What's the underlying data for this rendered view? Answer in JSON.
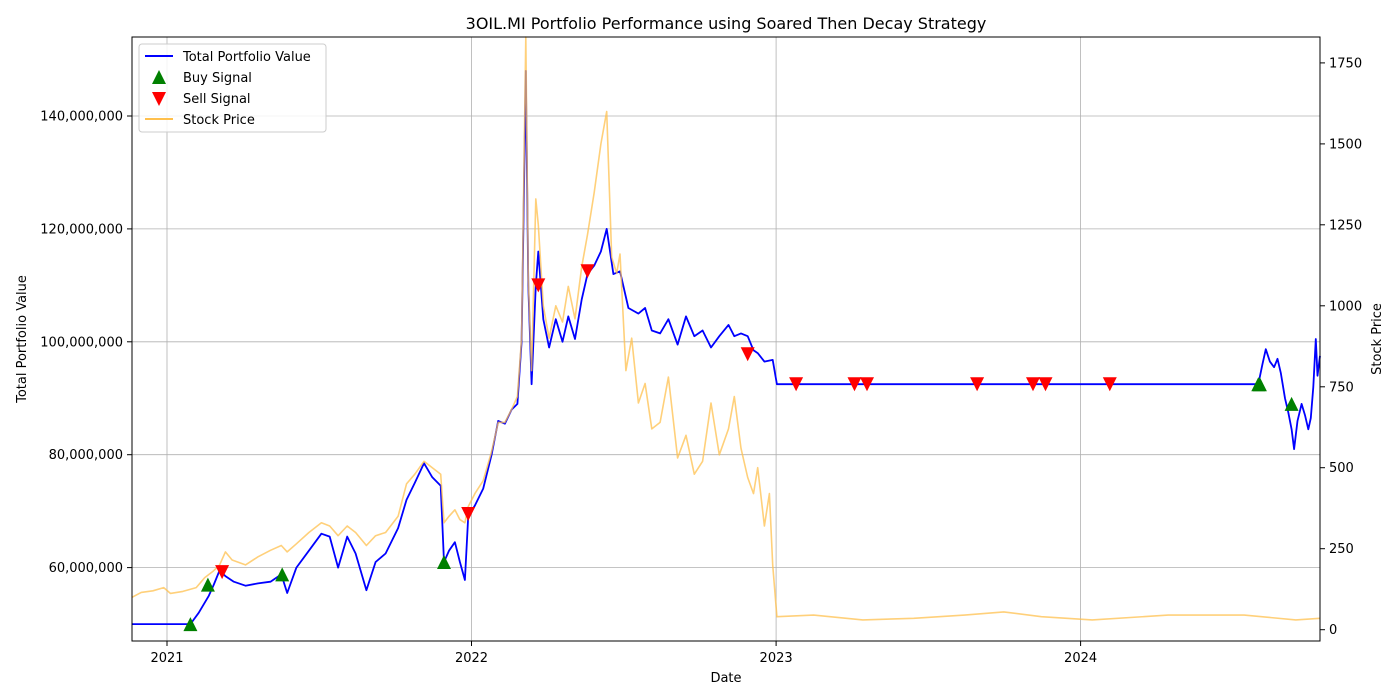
{
  "chart_data": {
    "type": "line",
    "title": "3OIL.MI Portfolio Performance using Soared Then Decay Strategy",
    "xlabel": "Date",
    "ylabel_left": "Total Portfolio Value",
    "ylabel_right": "Stock Price",
    "x_range": [
      "2020-11-20",
      "2024-10-14"
    ],
    "x_ticks": [
      {
        "date": "2021-01-01",
        "label": "2021"
      },
      {
        "date": "2022-01-01",
        "label": "2022"
      },
      {
        "date": "2023-01-01",
        "label": "2023"
      },
      {
        "date": "2024-01-01",
        "label": "2024"
      }
    ],
    "ylim_left": [
      47000000,
      154000000
    ],
    "yticks_left": [
      60000000,
      80000000,
      100000000,
      120000000,
      140000000
    ],
    "yticks_left_labels": [
      "60,000,000",
      "80,000,000",
      "100,000,000",
      "120,000,000",
      "140,000,000"
    ],
    "ylim_right": [
      -35,
      1830
    ],
    "yticks_right": [
      0,
      250,
      500,
      750,
      1000,
      1250,
      1500,
      1750
    ],
    "yticks_right_labels": [
      "0",
      "250",
      "500",
      "750",
      "1000",
      "1250",
      "1500",
      "1750"
    ],
    "grid": true,
    "legend_position": "top-left",
    "legend": [
      {
        "label": "Total Portfolio Value",
        "kind": "line",
        "color": "#0000ff"
      },
      {
        "label": "Buy Signal",
        "kind": "marker-up",
        "color": "#008000"
      },
      {
        "label": "Sell Signal",
        "kind": "marker-down",
        "color": "#ff0000"
      },
      {
        "label": "Stock Price",
        "kind": "line",
        "color": "#ffc04d"
      }
    ],
    "series": [
      {
        "name": "Total Portfolio Value",
        "axis": "left",
        "color": "#0000ff",
        "points": [
          [
            "2020-11-20",
            50000000
          ],
          [
            "2021-01-29",
            50000000
          ],
          [
            "2021-02-08",
            52000000
          ],
          [
            "2021-02-20",
            55000000
          ],
          [
            "2021-02-26",
            57000000
          ],
          [
            "2021-03-05",
            59500000
          ],
          [
            "2021-03-12",
            58500000
          ],
          [
            "2021-03-22",
            57500000
          ],
          [
            "2021-04-05",
            56800000
          ],
          [
            "2021-04-20",
            57200000
          ],
          [
            "2021-05-05",
            57500000
          ],
          [
            "2021-05-18",
            58800000
          ],
          [
            "2021-05-25",
            55500000
          ],
          [
            "2021-06-05",
            60000000
          ],
          [
            "2021-06-20",
            63000000
          ],
          [
            "2021-07-05",
            66000000
          ],
          [
            "2021-07-15",
            65500000
          ],
          [
            "2021-07-25",
            60000000
          ],
          [
            "2021-08-05",
            65500000
          ],
          [
            "2021-08-15",
            62500000
          ],
          [
            "2021-08-28",
            56000000
          ],
          [
            "2021-09-08",
            61000000
          ],
          [
            "2021-09-20",
            62500000
          ],
          [
            "2021-10-05",
            67000000
          ],
          [
            "2021-10-15",
            72000000
          ],
          [
            "2021-10-25",
            75000000
          ],
          [
            "2021-11-05",
            78500000
          ],
          [
            "2021-11-15",
            76000000
          ],
          [
            "2021-11-25",
            74500000
          ],
          [
            "2021-11-29",
            61000000
          ],
          [
            "2021-12-05",
            63000000
          ],
          [
            "2021-12-12",
            64500000
          ],
          [
            "2021-12-18",
            61000000
          ],
          [
            "2021-12-24",
            57800000
          ],
          [
            "2021-12-28",
            69000000
          ],
          [
            "2022-01-05",
            71000000
          ],
          [
            "2022-01-15",
            74000000
          ],
          [
            "2022-01-25",
            80000000
          ],
          [
            "2022-02-02",
            86000000
          ],
          [
            "2022-02-10",
            85500000
          ],
          [
            "2022-02-18",
            88000000
          ],
          [
            "2022-02-25",
            89000000
          ],
          [
            "2022-03-02",
            100000000
          ],
          [
            "2022-03-07",
            148000000
          ],
          [
            "2022-03-10",
            110000000
          ],
          [
            "2022-03-14",
            92500000
          ],
          [
            "2022-03-19",
            110000000
          ],
          [
            "2022-03-22",
            116000000
          ],
          [
            "2022-03-28",
            104000000
          ],
          [
            "2022-04-04",
            99000000
          ],
          [
            "2022-04-12",
            104000000
          ],
          [
            "2022-04-20",
            100000000
          ],
          [
            "2022-04-27",
            104500000
          ],
          [
            "2022-05-05",
            100500000
          ],
          [
            "2022-05-13",
            107500000
          ],
          [
            "2022-05-20",
            112000000
          ],
          [
            "2022-05-28",
            113500000
          ],
          [
            "2022-06-05",
            116000000
          ],
          [
            "2022-06-12",
            120000000
          ],
          [
            "2022-06-20",
            112000000
          ],
          [
            "2022-06-28",
            112500000
          ],
          [
            "2022-07-08",
            106000000
          ],
          [
            "2022-07-20",
            105000000
          ],
          [
            "2022-07-28",
            106000000
          ],
          [
            "2022-08-05",
            102000000
          ],
          [
            "2022-08-15",
            101500000
          ],
          [
            "2022-08-25",
            104000000
          ],
          [
            "2022-09-05",
            99500000
          ],
          [
            "2022-09-15",
            104500000
          ],
          [
            "2022-09-25",
            101000000
          ],
          [
            "2022-10-05",
            102000000
          ],
          [
            "2022-10-15",
            99000000
          ],
          [
            "2022-10-25",
            101000000
          ],
          [
            "2022-11-05",
            103000000
          ],
          [
            "2022-11-12",
            101000000
          ],
          [
            "2022-11-20",
            101500000
          ],
          [
            "2022-11-28",
            101000000
          ],
          [
            "2022-12-05",
            98500000
          ],
          [
            "2022-12-10",
            98000000
          ],
          [
            "2022-12-18",
            96500000
          ],
          [
            "2022-12-28",
            96800000
          ],
          [
            "2023-01-02",
            92500000
          ],
          [
            "2023-04-01",
            92500000
          ],
          [
            "2024-08-01",
            92500000
          ],
          [
            "2024-08-06",
            96000000
          ],
          [
            "2024-08-10",
            98700000
          ],
          [
            "2024-08-15",
            96500000
          ],
          [
            "2024-08-20",
            95500000
          ],
          [
            "2024-08-24",
            97000000
          ],
          [
            "2024-08-28",
            94500000
          ],
          [
            "2024-09-02",
            90000000
          ],
          [
            "2024-09-06",
            87500000
          ],
          [
            "2024-09-10",
            84500000
          ],
          [
            "2024-09-13",
            81000000
          ],
          [
            "2024-09-17",
            86000000
          ],
          [
            "2024-09-22",
            89000000
          ],
          [
            "2024-09-26",
            87000000
          ],
          [
            "2024-09-30",
            84500000
          ],
          [
            "2024-10-03",
            86500000
          ],
          [
            "2024-10-06",
            92000000
          ],
          [
            "2024-10-09",
            100500000
          ],
          [
            "2024-10-11",
            94000000
          ],
          [
            "2024-10-14",
            97500000
          ]
        ]
      },
      {
        "name": "Stock Price",
        "axis": "right",
        "color": "#ffc04d",
        "points": [
          [
            "2020-11-20",
            100
          ],
          [
            "2020-12-01",
            115
          ],
          [
            "2020-12-15",
            120
          ],
          [
            "2020-12-28",
            130
          ],
          [
            "2021-01-05",
            112
          ],
          [
            "2021-01-20",
            118
          ],
          [
            "2021-02-05",
            130
          ],
          [
            "2021-02-15",
            160
          ],
          [
            "2021-02-25",
            180
          ],
          [
            "2021-03-05",
            200
          ],
          [
            "2021-03-12",
            240
          ],
          [
            "2021-03-20",
            215
          ],
          [
            "2021-04-05",
            200
          ],
          [
            "2021-04-20",
            225
          ],
          [
            "2021-05-05",
            245
          ],
          [
            "2021-05-18",
            260
          ],
          [
            "2021-05-25",
            240
          ],
          [
            "2021-06-05",
            265
          ],
          [
            "2021-06-20",
            300
          ],
          [
            "2021-07-05",
            330
          ],
          [
            "2021-07-15",
            320
          ],
          [
            "2021-07-25",
            290
          ],
          [
            "2021-08-05",
            320
          ],
          [
            "2021-08-15",
            300
          ],
          [
            "2021-08-28",
            260
          ],
          [
            "2021-09-08",
            290
          ],
          [
            "2021-09-20",
            300
          ],
          [
            "2021-10-05",
            350
          ],
          [
            "2021-10-15",
            450
          ],
          [
            "2021-10-25",
            480
          ],
          [
            "2021-11-05",
            520
          ],
          [
            "2021-11-15",
            500
          ],
          [
            "2021-11-25",
            480
          ],
          [
            "2021-11-29",
            330
          ],
          [
            "2021-12-05",
            350
          ],
          [
            "2021-12-12",
            370
          ],
          [
            "2021-12-18",
            340
          ],
          [
            "2021-12-24",
            330
          ],
          [
            "2021-12-28",
            380
          ],
          [
            "2022-01-05",
            420
          ],
          [
            "2022-01-15",
            460
          ],
          [
            "2022-01-25",
            550
          ],
          [
            "2022-02-02",
            640
          ],
          [
            "2022-02-10",
            640
          ],
          [
            "2022-02-18",
            680
          ],
          [
            "2022-02-25",
            720
          ],
          [
            "2022-03-02",
            900
          ],
          [
            "2022-03-07",
            1830
          ],
          [
            "2022-03-10",
            1080
          ],
          [
            "2022-03-14",
            800
          ],
          [
            "2022-03-19",
            1330
          ],
          [
            "2022-03-22",
            1250
          ],
          [
            "2022-03-28",
            1000
          ],
          [
            "2022-04-04",
            900
          ],
          [
            "2022-04-12",
            1000
          ],
          [
            "2022-04-20",
            950
          ],
          [
            "2022-04-27",
            1060
          ],
          [
            "2022-05-05",
            960
          ],
          [
            "2022-05-13",
            1120
          ],
          [
            "2022-05-20",
            1220
          ],
          [
            "2022-05-28",
            1350
          ],
          [
            "2022-06-05",
            1500
          ],
          [
            "2022-06-12",
            1600
          ],
          [
            "2022-06-18",
            1150
          ],
          [
            "2022-06-24",
            1100
          ],
          [
            "2022-06-28",
            1160
          ],
          [
            "2022-07-05",
            800
          ],
          [
            "2022-07-12",
            900
          ],
          [
            "2022-07-20",
            700
          ],
          [
            "2022-07-28",
            760
          ],
          [
            "2022-08-05",
            620
          ],
          [
            "2022-08-15",
            640
          ],
          [
            "2022-08-25",
            780
          ],
          [
            "2022-09-05",
            530
          ],
          [
            "2022-09-15",
            600
          ],
          [
            "2022-09-25",
            480
          ],
          [
            "2022-10-05",
            520
          ],
          [
            "2022-10-15",
            700
          ],
          [
            "2022-10-25",
            540
          ],
          [
            "2022-11-05",
            620
          ],
          [
            "2022-11-12",
            720
          ],
          [
            "2022-11-20",
            560
          ],
          [
            "2022-11-28",
            470
          ],
          [
            "2022-12-05",
            420
          ],
          [
            "2022-12-10",
            500
          ],
          [
            "2022-12-18",
            320
          ],
          [
            "2022-12-24",
            420
          ],
          [
            "2022-12-28",
            200
          ],
          [
            "2023-01-02",
            40
          ],
          [
            "2023-02-15",
            45
          ],
          [
            "2023-04-15",
            30
          ],
          [
            "2023-06-15",
            35
          ],
          [
            "2023-08-15",
            45
          ],
          [
            "2023-10-01",
            55
          ],
          [
            "2023-11-15",
            40
          ],
          [
            "2024-01-15",
            30
          ],
          [
            "2024-04-15",
            45
          ],
          [
            "2024-07-15",
            45
          ],
          [
            "2024-09-15",
            30
          ],
          [
            "2024-10-14",
            35
          ]
        ]
      }
    ],
    "buy_signals": [
      [
        "2021-01-29",
        50000000
      ],
      [
        "2021-02-19",
        57000000
      ],
      [
        "2021-05-19",
        58800000
      ],
      [
        "2021-11-29",
        61000000
      ],
      [
        "2024-08-01",
        92500000
      ],
      [
        "2024-08-03",
        92500000
      ],
      [
        "2024-09-10",
        89000000
      ]
    ],
    "sell_signals": [
      [
        "2021-03-08",
        59200000
      ],
      [
        "2021-12-28",
        69500000
      ],
      [
        "2022-03-22",
        110000000
      ],
      [
        "2022-05-20",
        112500000
      ],
      [
        "2022-11-28",
        97800000
      ],
      [
        "2023-01-25",
        92500000
      ],
      [
        "2023-04-05",
        92500000
      ],
      [
        "2023-04-20",
        92500000
      ],
      [
        "2023-08-30",
        92500000
      ],
      [
        "2023-11-05",
        92500000
      ],
      [
        "2023-11-20",
        92500000
      ],
      [
        "2024-02-05",
        92500000
      ]
    ]
  }
}
